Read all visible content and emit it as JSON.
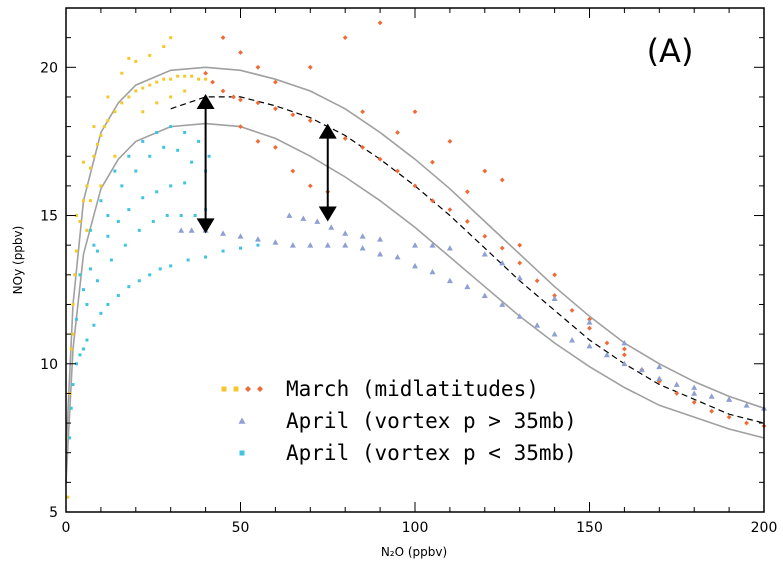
{
  "chart_data": {
    "type": "scatter",
    "panel_label": "(A)",
    "xlabel": "N₂O (ppbv)",
    "ylabel": "NOy (ppbv)",
    "xlim": [
      0,
      200
    ],
    "ylim": [
      5,
      22
    ],
    "xticks": [
      0,
      50,
      100,
      150,
      200
    ],
    "yticks": [
      5,
      10,
      15,
      20
    ],
    "x_tick_labels": [
      "0",
      "50",
      "100",
      "150",
      "200"
    ],
    "y_tick_labels": [
      "5",
      "10",
      "15",
      "20"
    ],
    "legend_position": "lower-center",
    "series": [
      {
        "name": "March (midlatitudes)",
        "color": "#f5c82a",
        "marker": "square",
        "points": [
          [
            0.5,
            5.5
          ],
          [
            0.8,
            7.5
          ],
          [
            1,
            9
          ],
          [
            1.5,
            10.5
          ],
          [
            2,
            12
          ],
          [
            2.5,
            13
          ],
          [
            3,
            13.8
          ],
          [
            4,
            14.8
          ],
          [
            5,
            15.5
          ],
          [
            6,
            16
          ],
          [
            7,
            16.6
          ],
          [
            8,
            17
          ],
          [
            9,
            17.4
          ],
          [
            10,
            17.7
          ],
          [
            11,
            18
          ],
          [
            12,
            18.2
          ],
          [
            14,
            18.5
          ],
          [
            16,
            18.8
          ],
          [
            18,
            19
          ],
          [
            20,
            19.2
          ],
          [
            22,
            19.3
          ],
          [
            24,
            19.4
          ],
          [
            26,
            19.5
          ],
          [
            28,
            19.6
          ],
          [
            30,
            19.6
          ],
          [
            32,
            19.7
          ],
          [
            34,
            19.7
          ],
          [
            36,
            19.7
          ],
          [
            38,
            19.6
          ],
          [
            40,
            19.6
          ],
          [
            3,
            15
          ],
          [
            5,
            16.8
          ],
          [
            8,
            18
          ],
          [
            12,
            19
          ],
          [
            16,
            19.8
          ],
          [
            20,
            20.2
          ],
          [
            24,
            20.4
          ],
          [
            28,
            20.7
          ],
          [
            30,
            21
          ],
          [
            18,
            20.3
          ],
          [
            14,
            17
          ],
          [
            10,
            16
          ],
          [
            6,
            14.5
          ],
          [
            4,
            13
          ],
          [
            22,
            18.5
          ],
          [
            26,
            18.8
          ],
          [
            30,
            19
          ],
          [
            34,
            19.2
          ],
          [
            2,
            11
          ],
          [
            7,
            15.5
          ]
        ]
      },
      {
        "name": "March (midlatitudes)",
        "color": "#f06a38",
        "marker": "diamond",
        "points": [
          [
            40,
            19.8
          ],
          [
            42,
            19.5
          ],
          [
            45,
            19.2
          ],
          [
            48,
            19
          ],
          [
            50,
            18.9
          ],
          [
            55,
            18.8
          ],
          [
            60,
            18.6
          ],
          [
            65,
            18.4
          ],
          [
            70,
            18.2
          ],
          [
            75,
            17.9
          ],
          [
            80,
            17.6
          ],
          [
            85,
            17.3
          ],
          [
            90,
            16.9
          ],
          [
            95,
            16.5
          ],
          [
            100,
            16
          ],
          [
            105,
            15.5
          ],
          [
            110,
            15.2
          ],
          [
            115,
            14.8
          ],
          [
            120,
            14.3
          ],
          [
            125,
            13.9
          ],
          [
            130,
            13.4
          ],
          [
            135,
            12.8
          ],
          [
            140,
            12.3
          ],
          [
            145,
            11.8
          ],
          [
            150,
            11.2
          ],
          [
            155,
            10.7
          ],
          [
            160,
            10.3
          ],
          [
            165,
            9.8
          ],
          [
            170,
            9.4
          ],
          [
            175,
            9
          ],
          [
            180,
            8.7
          ],
          [
            185,
            8.4
          ],
          [
            190,
            8.2
          ],
          [
            195,
            8
          ],
          [
            200,
            7.9
          ],
          [
            45,
            21
          ],
          [
            50,
            20.5
          ],
          [
            55,
            20
          ],
          [
            60,
            19.5
          ],
          [
            70,
            20
          ],
          [
            80,
            21
          ],
          [
            90,
            21.5
          ],
          [
            100,
            18.5
          ],
          [
            110,
            17.5
          ],
          [
            120,
            16.5
          ],
          [
            125,
            16.2
          ],
          [
            65,
            16.5
          ],
          [
            70,
            16
          ],
          [
            75,
            15.8
          ],
          [
            50,
            18
          ],
          [
            55,
            17.5
          ],
          [
            60,
            17.3
          ],
          [
            85,
            18.5
          ],
          [
            95,
            17.8
          ],
          [
            105,
            16.8
          ],
          [
            115,
            15.8
          ],
          [
            130,
            14
          ],
          [
            140,
            13
          ],
          [
            150,
            11.5
          ],
          [
            160,
            10.5
          ]
        ]
      },
      {
        "name": "April (vortex p > 35mb)",
        "color": "#8e9fd4",
        "marker": "triangle",
        "points": [
          [
            33,
            14.5
          ],
          [
            36,
            14.5
          ],
          [
            40,
            14.5
          ],
          [
            45,
            14.4
          ],
          [
            50,
            14.3
          ],
          [
            55,
            14.2
          ],
          [
            60,
            14.1
          ],
          [
            65,
            14
          ],
          [
            70,
            14
          ],
          [
            75,
            14
          ],
          [
            80,
            14
          ],
          [
            85,
            13.9
          ],
          [
            90,
            13.7
          ],
          [
            95,
            13.6
          ],
          [
            100,
            13.3
          ],
          [
            105,
            13.1
          ],
          [
            110,
            12.8
          ],
          [
            115,
            12.6
          ],
          [
            120,
            12.3
          ],
          [
            125,
            12
          ],
          [
            130,
            11.6
          ],
          [
            135,
            11.3
          ],
          [
            140,
            11
          ],
          [
            145,
            10.8
          ],
          [
            150,
            10.6
          ],
          [
            155,
            10.3
          ],
          [
            160,
            10
          ],
          [
            165,
            9.8
          ],
          [
            170,
            9.5
          ],
          [
            175,
            9.3
          ],
          [
            180,
            9
          ],
          [
            185,
            8.9
          ],
          [
            190,
            8.8
          ],
          [
            195,
            8.6
          ],
          [
            200,
            8.5
          ],
          [
            64,
            15
          ],
          [
            68,
            14.9
          ],
          [
            72,
            14.8
          ],
          [
            76,
            14.6
          ],
          [
            80,
            14.4
          ],
          [
            85,
            14.3
          ],
          [
            90,
            14.2
          ],
          [
            100,
            14
          ],
          [
            105,
            14
          ],
          [
            110,
            13.9
          ],
          [
            120,
            13.7
          ],
          [
            125,
            13.4
          ],
          [
            130,
            12.9
          ],
          [
            140,
            12.2
          ],
          [
            150,
            11.4
          ],
          [
            160,
            10.7
          ],
          [
            170,
            9.9
          ],
          [
            180,
            9.2
          ],
          [
            190,
            8.8
          ]
        ]
      },
      {
        "name": "April (vortex p < 35mb)",
        "color": "#3ec4e0",
        "marker": "square",
        "points": [
          [
            1,
            7.5
          ],
          [
            1.5,
            8.5
          ],
          [
            2,
            9.3
          ],
          [
            3,
            10
          ],
          [
            4,
            10.3
          ],
          [
            5,
            10.5
          ],
          [
            6,
            10.8
          ],
          [
            8,
            11.3
          ],
          [
            10,
            11.7
          ],
          [
            12,
            12
          ],
          [
            15,
            12.3
          ],
          [
            18,
            12.6
          ],
          [
            21,
            12.8
          ],
          [
            24,
            13
          ],
          [
            27,
            13.2
          ],
          [
            30,
            13.3
          ],
          [
            35,
            13.5
          ],
          [
            40,
            13.6
          ],
          [
            45,
            13.8
          ],
          [
            50,
            13.9
          ],
          [
            55,
            14
          ],
          [
            3,
            11.5
          ],
          [
            5,
            12.5
          ],
          [
            7,
            13.2
          ],
          [
            9,
            13.8
          ],
          [
            12,
            14.3
          ],
          [
            15,
            14.8
          ],
          [
            18,
            15.2
          ],
          [
            22,
            15.6
          ],
          [
            26,
            15.8
          ],
          [
            30,
            16
          ],
          [
            34,
            16.1
          ],
          [
            4,
            13
          ],
          [
            7,
            14.5
          ],
          [
            10,
            15.5
          ],
          [
            14,
            16.5
          ],
          [
            18,
            17
          ],
          [
            22,
            17.5
          ],
          [
            26,
            17.8
          ],
          [
            30,
            18
          ],
          [
            34,
            17.8
          ],
          [
            38,
            17.5
          ],
          [
            41,
            17
          ],
          [
            6,
            12
          ],
          [
            9,
            12.8
          ],
          [
            13,
            13.5
          ],
          [
            17,
            14
          ],
          [
            21,
            14.5
          ],
          [
            25,
            14.8
          ],
          [
            29,
            15
          ],
          [
            33,
            15
          ],
          [
            37,
            15
          ],
          [
            40,
            15.2
          ],
          [
            8,
            14
          ],
          [
            12,
            15
          ],
          [
            16,
            16
          ],
          [
            20,
            16.5
          ],
          [
            24,
            17
          ],
          [
            28,
            17.3
          ],
          [
            32,
            17.2
          ],
          [
            36,
            16.8
          ],
          [
            40,
            16.5
          ]
        ]
      }
    ],
    "legend": [
      {
        "label": "March (midlatitudes)",
        "color": "#f5c82a",
        "color2": "#f06a38",
        "marker": "square-diamond"
      },
      {
        "label": "April (vortex p > 35mb)",
        "color": "#8e9fd4",
        "marker": "triangle"
      },
      {
        "label": "April (vortex p < 35mb)",
        "color": "#3ec4e0",
        "marker": "square"
      }
    ],
    "reference_curves": [
      {
        "role": "upper-envelope",
        "color": "#a0a0a0",
        "dash": "solid",
        "points": [
          [
            0,
            7
          ],
          [
            2,
            12
          ],
          [
            5,
            15.5
          ],
          [
            10,
            17.8
          ],
          [
            15,
            18.8
          ],
          [
            20,
            19.4
          ],
          [
            30,
            19.9
          ],
          [
            40,
            20
          ],
          [
            50,
            19.9
          ],
          [
            60,
            19.6
          ],
          [
            70,
            19.2
          ],
          [
            80,
            18.6
          ],
          [
            90,
            17.8
          ],
          [
            100,
            16.9
          ],
          [
            110,
            15.9
          ],
          [
            120,
            14.8
          ],
          [
            130,
            13.7
          ],
          [
            140,
            12.6
          ],
          [
            150,
            11.6
          ],
          [
            160,
            10.7
          ],
          [
            170,
            10
          ],
          [
            180,
            9.4
          ],
          [
            190,
            8.9
          ],
          [
            200,
            8.5
          ]
        ]
      },
      {
        "role": "lower-envelope",
        "color": "#a0a0a0",
        "dash": "solid",
        "points": [
          [
            0,
            6
          ],
          [
            2,
            10.5
          ],
          [
            5,
            13.7
          ],
          [
            10,
            15.9
          ],
          [
            15,
            16.9
          ],
          [
            20,
            17.5
          ],
          [
            30,
            18
          ],
          [
            40,
            18.1
          ],
          [
            50,
            18
          ],
          [
            60,
            17.6
          ],
          [
            70,
            17
          ],
          [
            80,
            16.3
          ],
          [
            90,
            15.5
          ],
          [
            100,
            14.6
          ],
          [
            110,
            13.6
          ],
          [
            120,
            12.6
          ],
          [
            130,
            11.6
          ],
          [
            140,
            10.7
          ],
          [
            150,
            9.9
          ],
          [
            160,
            9.2
          ],
          [
            170,
            8.6
          ],
          [
            180,
            8.2
          ],
          [
            190,
            7.8
          ],
          [
            200,
            7.5
          ]
        ]
      },
      {
        "role": "mean-fit",
        "color": "#000000",
        "dash": "dashed",
        "points": [
          [
            30,
            18.6
          ],
          [
            40,
            19
          ],
          [
            50,
            19
          ],
          [
            60,
            18.7
          ],
          [
            70,
            18.3
          ],
          [
            80,
            17.7
          ],
          [
            90,
            16.9
          ],
          [
            100,
            16
          ],
          [
            110,
            15
          ],
          [
            120,
            13.9
          ],
          [
            130,
            12.8
          ],
          [
            140,
            11.8
          ],
          [
            150,
            10.8
          ],
          [
            160,
            10
          ],
          [
            170,
            9.3
          ],
          [
            180,
            8.8
          ],
          [
            190,
            8.3
          ],
          [
            200,
            8
          ]
        ]
      }
    ],
    "arrows": [
      {
        "x": 40,
        "y_from": 19.1,
        "y_to": 14.4,
        "color": "#000000",
        "heads": "both"
      },
      {
        "x": 75,
        "y_from": 18.1,
        "y_to": 14.8,
        "color": "#000000",
        "heads": "both"
      }
    ]
  }
}
